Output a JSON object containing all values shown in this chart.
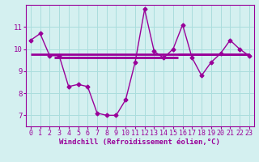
{
  "x": [
    0,
    1,
    2,
    3,
    4,
    5,
    6,
    7,
    8,
    9,
    10,
    11,
    12,
    13,
    14,
    15,
    16,
    17,
    18,
    19,
    20,
    21,
    22,
    23
  ],
  "y": [
    10.4,
    10.7,
    9.7,
    9.7,
    8.3,
    8.4,
    8.3,
    7.1,
    7.0,
    7.0,
    7.7,
    9.4,
    11.8,
    9.9,
    9.6,
    10.0,
    11.1,
    9.6,
    8.8,
    9.4,
    9.8,
    10.4,
    10.0,
    9.7
  ],
  "hline1_y": 9.76,
  "hline1_xmin": 0,
  "hline1_xmax": 23,
  "hline2_y": 9.6,
  "hline2_xmin": 2.5,
  "hline2_xmax": 15.5,
  "hline3_y": 9.76,
  "hline3_xmin": 15.5,
  "hline3_xmax": 23,
  "line_color": "#990099",
  "bg_color": "#d4f0f0",
  "xlabel": "Windchill (Refroidissement éolien,°C)",
  "ylim": [
    6.5,
    12.0
  ],
  "xlim": [
    -0.5,
    23.5
  ],
  "yticks": [
    7,
    8,
    9,
    10,
    11
  ],
  "xticks": [
    0,
    1,
    2,
    3,
    4,
    5,
    6,
    7,
    8,
    9,
    10,
    11,
    12,
    13,
    14,
    15,
    16,
    17,
    18,
    19,
    20,
    21,
    22,
    23
  ],
  "grid_color": "#aadddd",
  "marker": "D",
  "markersize": 2.5,
  "tick_fontsize": 6,
  "xlabel_fontsize": 6.5,
  "line_width": 1.0
}
